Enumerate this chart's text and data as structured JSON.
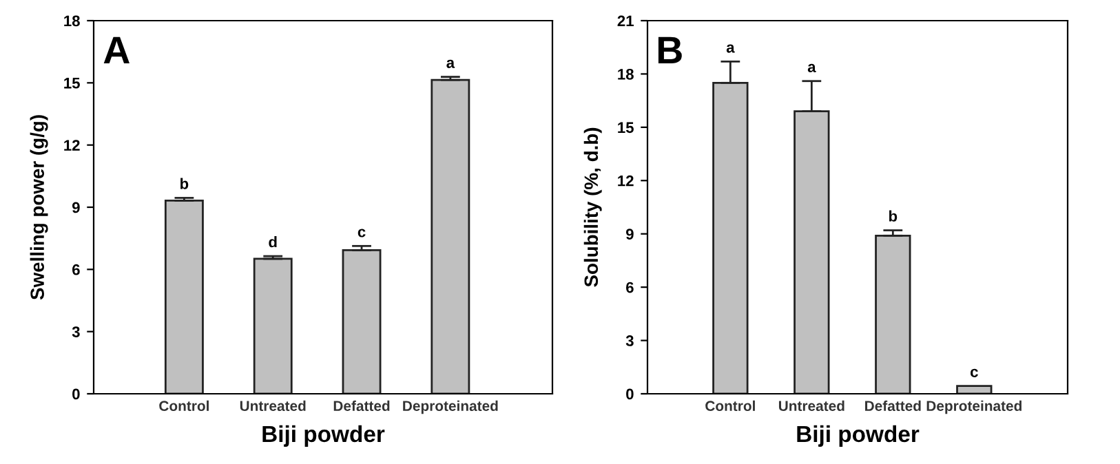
{
  "chart_data": [
    {
      "type": "bar",
      "xlabel": "Biji powder",
      "ylabel": "Swelling power (g/g)",
      "categories": [
        "Control",
        "Untreated",
        "Defatted",
        "Deproteinated"
      ],
      "values": [
        9.32,
        6.51,
        6.93,
        15.14
      ],
      "errors": [
        0.13,
        0.13,
        0.2,
        0.15
      ],
      "color": "#c0c0c0",
      "ylim": [
        0,
        18
      ],
      "yticks": [
        0,
        3,
        6,
        9,
        12,
        15,
        18
      ],
      "grid": false,
      "annotations": [
        "A",
        {
          "text": "b",
          "x": "Control",
          "y": 9.45
        },
        {
          "text": "d",
          "x": "Untreated",
          "y": 6.64
        },
        {
          "text": "c",
          "x": "Defatted",
          "y": 7.13
        },
        {
          "text": "a",
          "x": "Deproteinated",
          "y": 15.29
        }
      ]
    },
    {
      "type": "bar",
      "xlabel": "Biji powder",
      "ylabel": "Solubility (%, d.b)",
      "categories": [
        "Control",
        "Untreated",
        "Defatted",
        "Deproteinated"
      ],
      "values": [
        17.5,
        15.9,
        8.9,
        0.44
      ],
      "errors": [
        1.2,
        1.7,
        0.3,
        null
      ],
      "color": "#c0c0c0",
      "ylim": [
        0,
        21
      ],
      "yticks": [
        0,
        3,
        6,
        9,
        12,
        15,
        18,
        21
      ],
      "grid": false,
      "annotations": [
        "B",
        {
          "text": "a",
          "x": "Control",
          "y": 18.7
        },
        {
          "text": "a",
          "x": "Untreated",
          "y": 17.6
        },
        {
          "text": "b",
          "x": "Defatted",
          "y": 9.2
        },
        {
          "text": "c",
          "x": "Deproteinated",
          "y": 0.44
        }
      ]
    }
  ]
}
